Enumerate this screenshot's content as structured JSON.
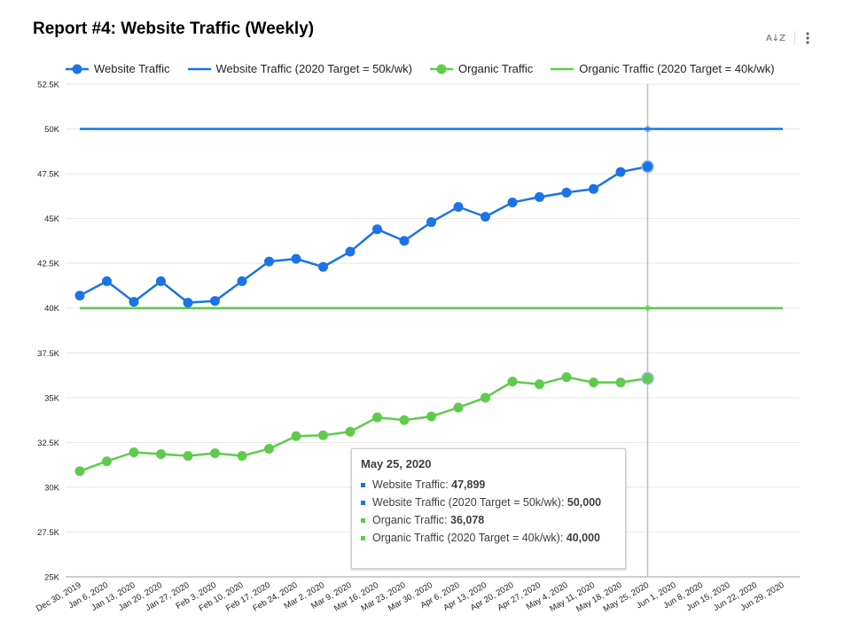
{
  "title": "Report #4: Website Traffic (Weekly)",
  "toolbar": {
    "sort_icon_text": "A↓Z",
    "more_icon": "more-vert-icon"
  },
  "colors": {
    "website": "#1a73e8",
    "organic": "#5fcb4d",
    "grid": "#e6e6e6",
    "crosshair": "#bdbdbd"
  },
  "chart_data": {
    "type": "line",
    "x": [
      "Dec 30, 2019",
      "Jan 6, 2020",
      "Jan 13, 2020",
      "Jan 20, 2020",
      "Jan 27, 2020",
      "Feb 3, 2020",
      "Feb 10, 2020",
      "Feb 17, 2020",
      "Feb 24, 2020",
      "Mar 2, 2020",
      "Mar 9, 2020",
      "Mar 16, 2020",
      "Mar 23, 2020",
      "Mar 30, 2020",
      "Apr 6, 2020",
      "Apr 13, 2020",
      "Apr 20, 2020",
      "Apr 27, 2020",
      "May 4, 2020",
      "May 11, 2020",
      "May 18, 2020",
      "May 25, 2020",
      "Jun 1, 2020",
      "Jun 8, 2020",
      "Jun 15, 2020",
      "Jun 22, 2020",
      "Jun 29, 2020"
    ],
    "yticks": [
      "25K",
      "27.5K",
      "30K",
      "32.5K",
      "35K",
      "37.5K",
      "40K",
      "42.5K",
      "45K",
      "47.5K",
      "50K",
      "52.5K"
    ],
    "ylim": [
      25000,
      52500
    ],
    "series": [
      {
        "name": "Website Traffic",
        "style": "line-dots",
        "color": "#1a73e8",
        "values": [
          40700,
          41500,
          40350,
          41500,
          40300,
          40400,
          41500,
          42600,
          42750,
          42300,
          43150,
          44400,
          43750,
          44800,
          45650,
          45100,
          45900,
          46200,
          46450,
          46650,
          47600,
          47899,
          null,
          null,
          null,
          null,
          null
        ]
      },
      {
        "name": "Website Traffic (2020 Target = 50k/wk)",
        "style": "line",
        "color": "#1a73e8",
        "values": [
          50000,
          50000,
          50000,
          50000,
          50000,
          50000,
          50000,
          50000,
          50000,
          50000,
          50000,
          50000,
          50000,
          50000,
          50000,
          50000,
          50000,
          50000,
          50000,
          50000,
          50000,
          50000,
          50000,
          50000,
          50000,
          50000,
          50000
        ]
      },
      {
        "name": "Organic Traffic",
        "style": "line-dots",
        "color": "#5fcb4d",
        "values": [
          30900,
          31450,
          31950,
          31850,
          31750,
          31900,
          31750,
          32150,
          32850,
          32900,
          33100,
          33900,
          33750,
          33950,
          34450,
          35000,
          35900,
          35750,
          36150,
          35850,
          35850,
          36078,
          null,
          null,
          null,
          null,
          null
        ]
      },
      {
        "name": "Organic Traffic (2020 Target = 40k/wk)",
        "style": "line",
        "color": "#5fcb4d",
        "values": [
          40000,
          40000,
          40000,
          40000,
          40000,
          40000,
          40000,
          40000,
          40000,
          40000,
          40000,
          40000,
          40000,
          40000,
          40000,
          40000,
          40000,
          40000,
          40000,
          40000,
          40000,
          40000,
          40000,
          40000,
          40000,
          40000,
          40000
        ]
      }
    ],
    "grid": true,
    "legend_position": "top",
    "highlight_index": 21
  },
  "tooltip": {
    "date": "May 25, 2020",
    "rows": [
      {
        "label": "Website Traffic: ",
        "value": "47,899",
        "color": "#1a73e8"
      },
      {
        "label": "Website Traffic (2020 Target = 50k/wk): ",
        "value": "50,000",
        "color": "#1a73e8"
      },
      {
        "label": "Organic Traffic: ",
        "value": "36,078",
        "color": "#5fcb4d"
      },
      {
        "label": "Organic Traffic (2020 Target = 40k/wk): ",
        "value": "40,000",
        "color": "#5fcb4d"
      }
    ]
  }
}
